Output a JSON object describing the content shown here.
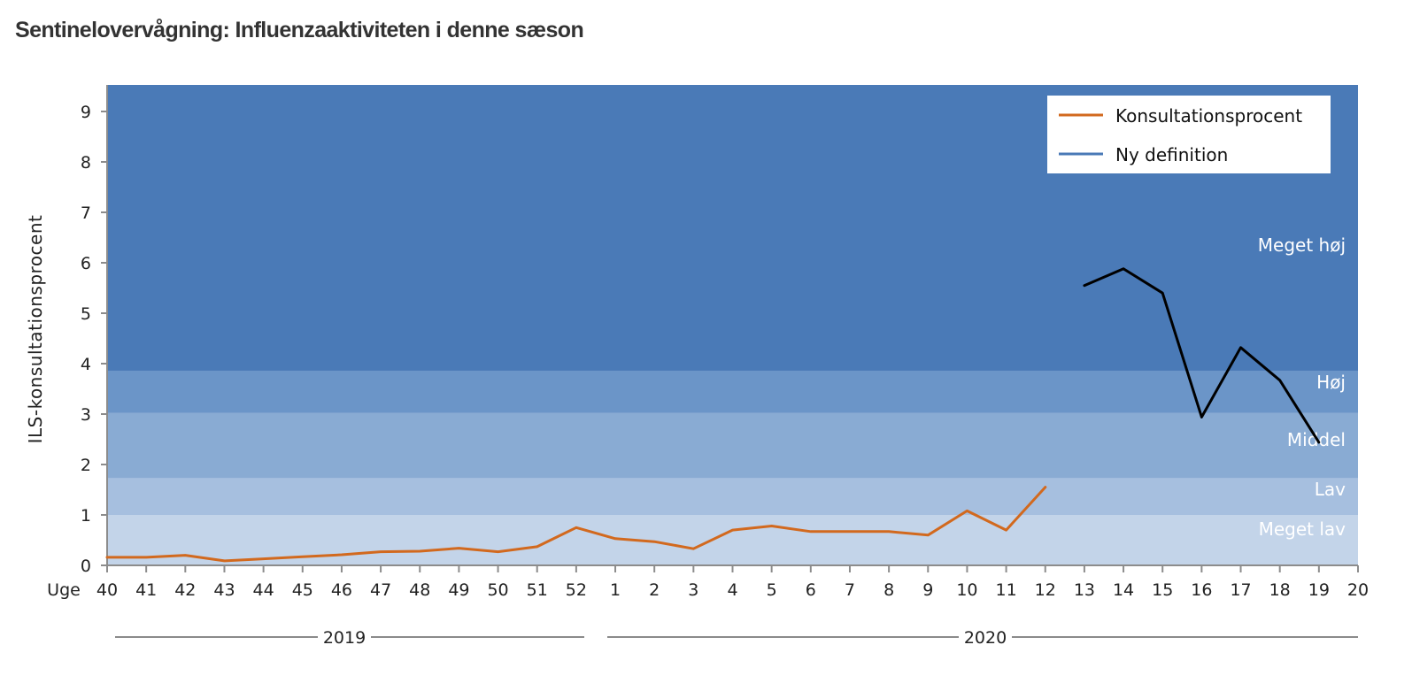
{
  "title": "Sentinelovervågning: Influenzaaktiviteten i denne sæson",
  "colors": {
    "konsultationsprocent": "#d2691e",
    "ny_definition": "#4a7ab7",
    "ny_definition_line": "#000000",
    "band_meget_hoj": "#4a7ab7",
    "band_hoj": "#6b95c8",
    "band_middel": "#89abd3",
    "band_lav": "#a6bfdf",
    "band_meget_lav": "#c3d4e9"
  },
  "chart_data": {
    "type": "line",
    "title": "Sentinelovervågning: Influenzaaktiviteten i denne sæson",
    "xlabel": "Uge",
    "ylabel": "ILS-konsultationsprocent",
    "ylim": [
      0,
      9.5
    ],
    "yticks": [
      0,
      1,
      2,
      3,
      4,
      5,
      6,
      7,
      8,
      9
    ],
    "categories": [
      "40",
      "41",
      "42",
      "43",
      "44",
      "45",
      "46",
      "47",
      "48",
      "49",
      "50",
      "51",
      "52",
      "1",
      "2",
      "3",
      "4",
      "5",
      "6",
      "7",
      "8",
      "9",
      "10",
      "11",
      "12",
      "13",
      "14",
      "15",
      "16",
      "17",
      "18",
      "19",
      "20"
    ],
    "year_groups": [
      {
        "label": "2019",
        "from": "40",
        "to": "52"
      },
      {
        "label": "2020",
        "from": "1",
        "to": "20"
      }
    ],
    "series": [
      {
        "name": "Konsultationsprocent",
        "color": "#d2691e",
        "values": [
          0.16,
          0.16,
          0.2,
          0.09,
          0.13,
          0.17,
          0.21,
          0.27,
          0.28,
          0.34,
          0.27,
          0.37,
          0.75,
          0.53,
          0.47,
          0.33,
          0.7,
          0.78,
          0.67,
          0.67,
          0.67,
          0.6,
          1.08,
          0.7,
          1.55,
          null,
          null,
          null,
          null,
          null,
          null,
          null,
          null
        ]
      },
      {
        "name": "Ny definition",
        "color": "#000000",
        "legend_color": "#4a7ab7",
        "values": [
          null,
          null,
          null,
          null,
          null,
          null,
          null,
          null,
          null,
          null,
          null,
          null,
          null,
          null,
          null,
          null,
          null,
          null,
          null,
          null,
          null,
          null,
          null,
          null,
          null,
          5.55,
          5.88,
          5.4,
          2.94,
          4.32,
          3.67,
          2.44,
          null
        ]
      }
    ],
    "bands": [
      {
        "label": "Meget lav",
        "from": 0,
        "to": 1.0
      },
      {
        "label": "Lav",
        "from": 1.0,
        "to": 1.73
      },
      {
        "label": "Middel",
        "from": 1.73,
        "to": 3.02
      },
      {
        "label": "Høj",
        "from": 3.02,
        "to": 3.86
      },
      {
        "label": "Meget høj",
        "from": 3.86,
        "to": 9.5
      }
    ],
    "legend": {
      "position": "top-right",
      "entries": [
        "Konsultationsprocent",
        "Ny definition"
      ]
    },
    "grid": false
  }
}
